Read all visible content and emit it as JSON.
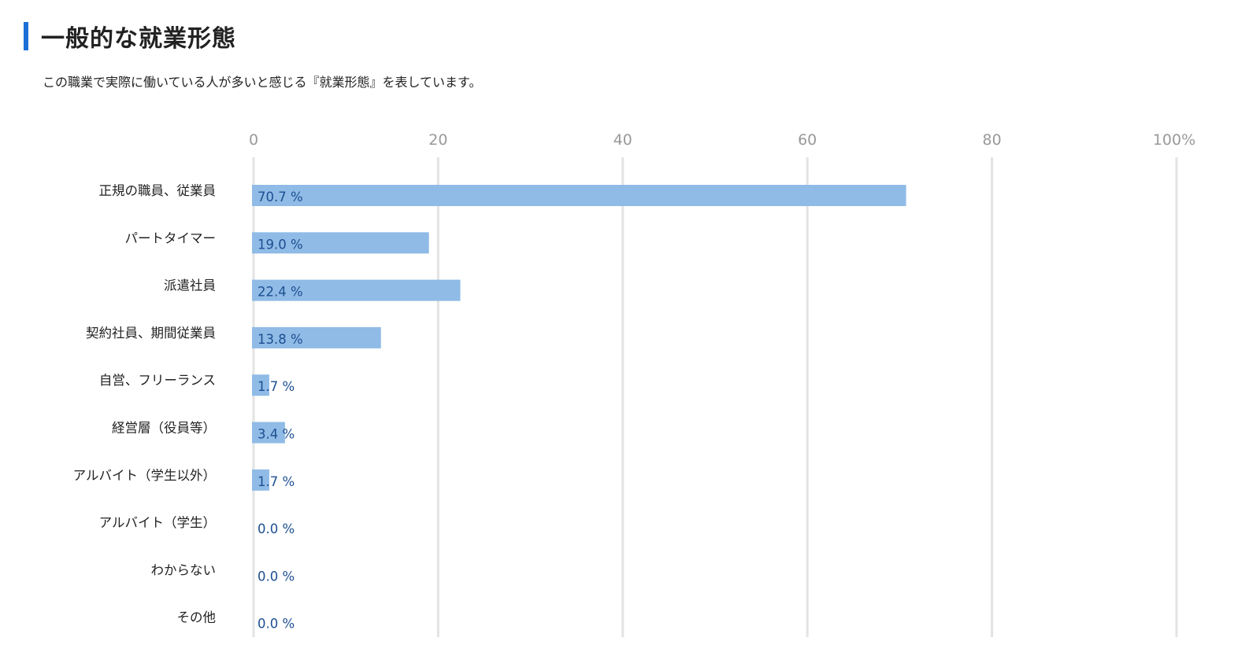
{
  "header": {
    "title": "一般的な就業形態",
    "description": "この職業で実際に働いている人が多いと感じる『就業形態』を表しています。"
  },
  "colors": {
    "accent": "#1a6fd6",
    "bar": "#8fbbe6",
    "value_text": "#1d4f91",
    "tick_text": "#999999",
    "grid": "#e3e3e3"
  },
  "chart_data": {
    "type": "bar",
    "orientation": "horizontal",
    "categories": [
      "正規の職員、従業員",
      "パートタイマー",
      "派遣社員",
      "契約社員、期間従業員",
      "自営、フリーランス",
      "経営層（役員等）",
      "アルバイト（学生以外）",
      "アルバイト（学生）",
      "わからない",
      "その他"
    ],
    "values": [
      70.7,
      19.0,
      22.4,
      13.8,
      1.7,
      3.4,
      1.7,
      0.0,
      0.0,
      0.0
    ],
    "value_labels": [
      "70.7 %",
      "19.0 %",
      "22.4 %",
      "13.8 %",
      "1.7 %",
      "3.4 %",
      "1.7 %",
      "0.0 %",
      "0.0 %",
      "0.0 %"
    ],
    "xlim": [
      0,
      100
    ],
    "xticks": [
      0,
      20,
      40,
      60,
      80,
      100
    ],
    "xtick_labels": [
      "0",
      "20",
      "40",
      "60",
      "80",
      "100%"
    ],
    "grid": true,
    "legend": "none"
  }
}
